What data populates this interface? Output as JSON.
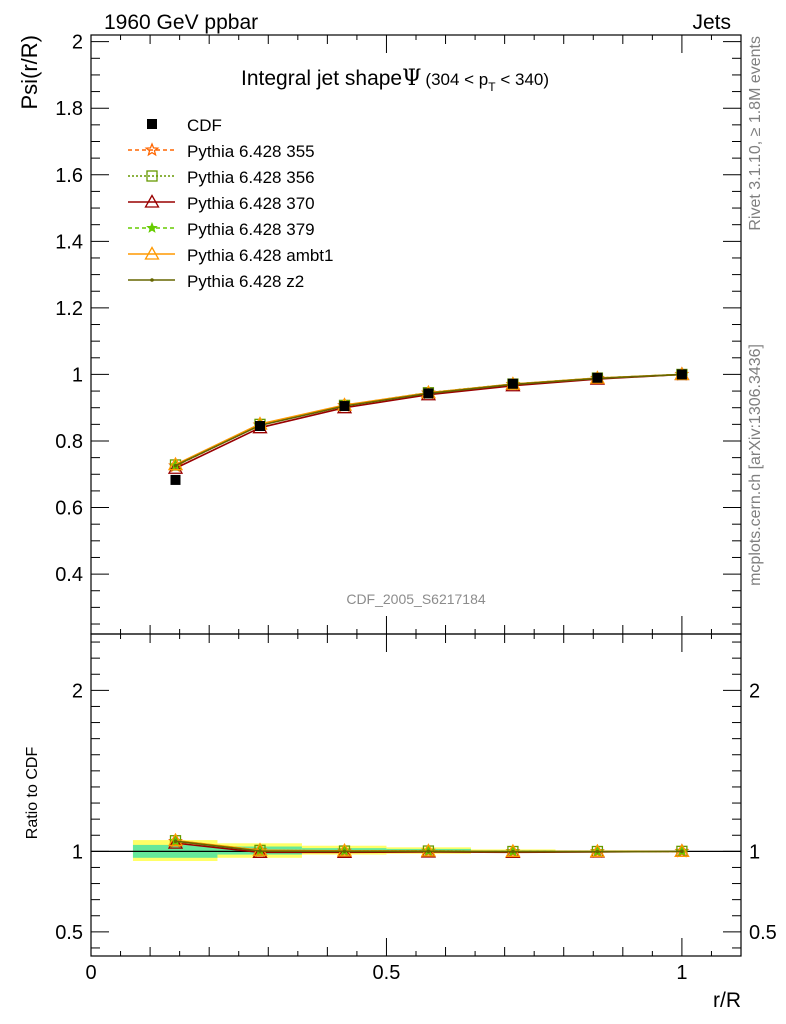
{
  "header": {
    "left": "1960 GeV ppbar",
    "right": "Jets"
  },
  "side_labels": {
    "rivet": "Rivet 3.1.10, ≥ 1.8M events",
    "mcplots": "mcplots.cern.ch [arXiv:1306.3436]"
  },
  "watermark": "CDF_2005_S6217184",
  "chart_data": [
    {
      "type": "line",
      "title_parts": {
        "main": "Integral jet shape",
        "symbol": "Ψ",
        "range_open": "(304 < p",
        "range_sub": "T",
        "range_close": " < 340)"
      },
      "ylabel": "Psi(r/R)",
      "ylim": [
        0.22,
        2.02
      ],
      "yticks": [
        0.4,
        0.6,
        0.8,
        1,
        1.2,
        1.4,
        1.6,
        1.8,
        2
      ],
      "ytick_labels": [
        "0.4",
        "0.6",
        "0.8",
        "1",
        "1.2",
        "1.4",
        "1.6",
        "1.8",
        "2"
      ],
      "xlim": [
        0,
        1.1
      ],
      "x": [
        0.143,
        0.286,
        0.429,
        0.571,
        0.714,
        0.857,
        1.0
      ],
      "data": {
        "name": "CDF",
        "values": [
          0.683,
          0.845,
          0.905,
          0.943,
          0.972,
          0.99,
          1.0
        ]
      },
      "series": [
        {
          "name": "Pythia 6.428 355",
          "color": "#ff6600",
          "dash": "4,3",
          "marker": "star-open",
          "values": [
            0.725,
            0.848,
            0.906,
            0.944,
            0.97,
            0.988,
            1.0
          ]
        },
        {
          "name": "Pythia 6.428 356",
          "color": "#669900",
          "dash": "2,2",
          "marker": "square-open",
          "values": [
            0.728,
            0.85,
            0.907,
            0.945,
            0.971,
            0.989,
            1.0
          ]
        },
        {
          "name": "Pythia 6.428 370",
          "color": "#990000",
          "dash": "",
          "marker": "triangle-open",
          "values": [
            0.718,
            0.84,
            0.9,
            0.939,
            0.966,
            0.986,
            1.0
          ]
        },
        {
          "name": "Pythia 6.428 379",
          "color": "#66cc00",
          "dash": "4,3",
          "marker": "star",
          "values": [
            0.727,
            0.849,
            0.907,
            0.945,
            0.971,
            0.989,
            1.0
          ]
        },
        {
          "name": "Pythia 6.428 ambt1",
          "color": "#ff9900",
          "dash": "",
          "marker": "triangle-open",
          "values": [
            0.729,
            0.851,
            0.908,
            0.945,
            0.971,
            0.989,
            1.0
          ]
        },
        {
          "name": "Pythia 6.428 z2",
          "color": "#666600",
          "dash": "",
          "marker": "dot",
          "values": [
            0.726,
            0.847,
            0.905,
            0.943,
            0.97,
            0.988,
            1.0
          ]
        }
      ]
    },
    {
      "type": "line",
      "ylabel": "Ratio to CDF",
      "ylim": [
        0.35,
        2.35
      ],
      "yticks": [
        0.5,
        1,
        2
      ],
      "ytick_labels": [
        "0.5",
        "1",
        "2"
      ],
      "xlabel": "r/R",
      "xlim": [
        0,
        1.1
      ],
      "xticks": [
        0,
        0.5,
        1
      ],
      "xtick_labels": [
        "0",
        "0.5",
        "1"
      ],
      "x": [
        0.143,
        0.286,
        0.429,
        0.571,
        0.714,
        0.857,
        1.0
      ],
      "uncertainty_bands": [
        {
          "x0": 0.071,
          "x1": 0.214,
          "inner": [
            0.96,
            1.04
          ],
          "outer": [
            0.94,
            1.07
          ]
        },
        {
          "x0": 0.214,
          "x1": 0.357,
          "inner": [
            0.98,
            1.03
          ],
          "outer": [
            0.96,
            1.05
          ]
        },
        {
          "x0": 0.357,
          "x1": 0.5,
          "inner": [
            0.99,
            1.02
          ],
          "outer": [
            0.98,
            1.035
          ]
        },
        {
          "x0": 0.5,
          "x1": 0.643,
          "inner": [
            0.995,
            1.015
          ],
          "outer": [
            0.985,
            1.025
          ]
        },
        {
          "x0": 0.643,
          "x1": 0.786,
          "inner": [
            0.996,
            1.006
          ],
          "outer": [
            0.99,
            1.012
          ]
        },
        {
          "x0": 0.786,
          "x1": 0.929,
          "inner": [
            0.998,
            1.003
          ],
          "outer": [
            0.995,
            1.006
          ]
        },
        {
          "x0": 0.929,
          "x1": 1.071,
          "inner": [
            0.999,
            1.001
          ],
          "outer": [
            0.998,
            1.002
          ]
        }
      ],
      "band_colors": {
        "inner": "#66e89a",
        "outer": "#ffff66"
      },
      "series": [
        {
          "name": "Pythia 6.428 355",
          "values": [
            1.061,
            1.004,
            1.001,
            1.001,
            0.998,
            0.998,
            1.0
          ]
        },
        {
          "name": "Pythia 6.428 356",
          "values": [
            1.066,
            1.006,
            1.002,
            1.002,
            0.999,
            0.999,
            1.0
          ]
        },
        {
          "name": "Pythia 6.428 370",
          "values": [
            1.051,
            0.994,
            0.994,
            0.996,
            0.994,
            0.996,
            1.0
          ]
        },
        {
          "name": "Pythia 6.428 379",
          "values": [
            1.064,
            1.005,
            1.002,
            1.002,
            0.999,
            0.999,
            1.0
          ]
        },
        {
          "name": "Pythia 6.428 ambt1",
          "values": [
            1.067,
            1.007,
            1.003,
            1.002,
            0.999,
            0.999,
            1.0
          ]
        },
        {
          "name": "Pythia 6.428 z2",
          "values": [
            1.063,
            1.002,
            1.0,
            1.0,
            0.998,
            0.998,
            1.0
          ]
        }
      ]
    }
  ]
}
